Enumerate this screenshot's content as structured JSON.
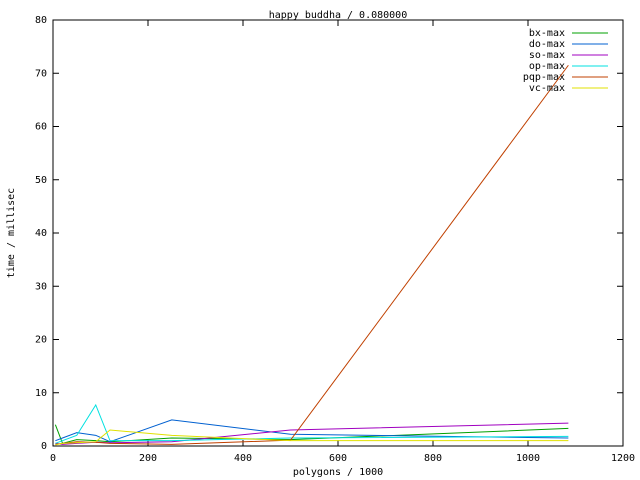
{
  "chart_data": {
    "type": "line",
    "title": "happy buddha / 0.080000",
    "x_label": "polygons / 1000",
    "y_label": "time / millisec",
    "x": [
      5,
      20,
      50,
      90,
      120,
      250,
      500,
      1085
    ],
    "series": [
      {
        "name": "bx-max",
        "color": "#00a000",
        "values": [
          4,
          0.5,
          1.2,
          1.0,
          0.8,
          1.5,
          1.2,
          3.3
        ]
      },
      {
        "name": "do-max",
        "color": "#0060d0",
        "values": [
          1,
          1.5,
          2.5,
          2.0,
          0.8,
          4.9,
          2.2,
          1.5
        ]
      },
      {
        "name": "so-max",
        "color": "#a000c0",
        "values": [
          0.5,
          0.3,
          0.5,
          0.7,
          0.6,
          0.8,
          3.0,
          4.3
        ]
      },
      {
        "name": "op-max",
        "color": "#00e0e0",
        "values": [
          0.5,
          1.0,
          2.0,
          7.7,
          1.0,
          1.0,
          1.5,
          1.8
        ]
      },
      {
        "name": "pqp-max",
        "color": "#c04000",
        "values": [
          0.3,
          0.5,
          0.8,
          0.7,
          0.5,
          0.3,
          1.1,
          71.5
        ]
      },
      {
        "name": "vc-max",
        "color": "#e0e000",
        "values": [
          0.2,
          0.5,
          0.6,
          0.8,
          3.0,
          2.0,
          1.0,
          1.0
        ]
      }
    ],
    "xlim": [
      0,
      1200
    ],
    "xticks": [
      0,
      200,
      400,
      600,
      800,
      1000,
      1200
    ],
    "ylim": [
      0,
      80
    ],
    "yticks": [
      0,
      10,
      20,
      30,
      40,
      50,
      60,
      70,
      80
    ],
    "legend": "top-right"
  }
}
